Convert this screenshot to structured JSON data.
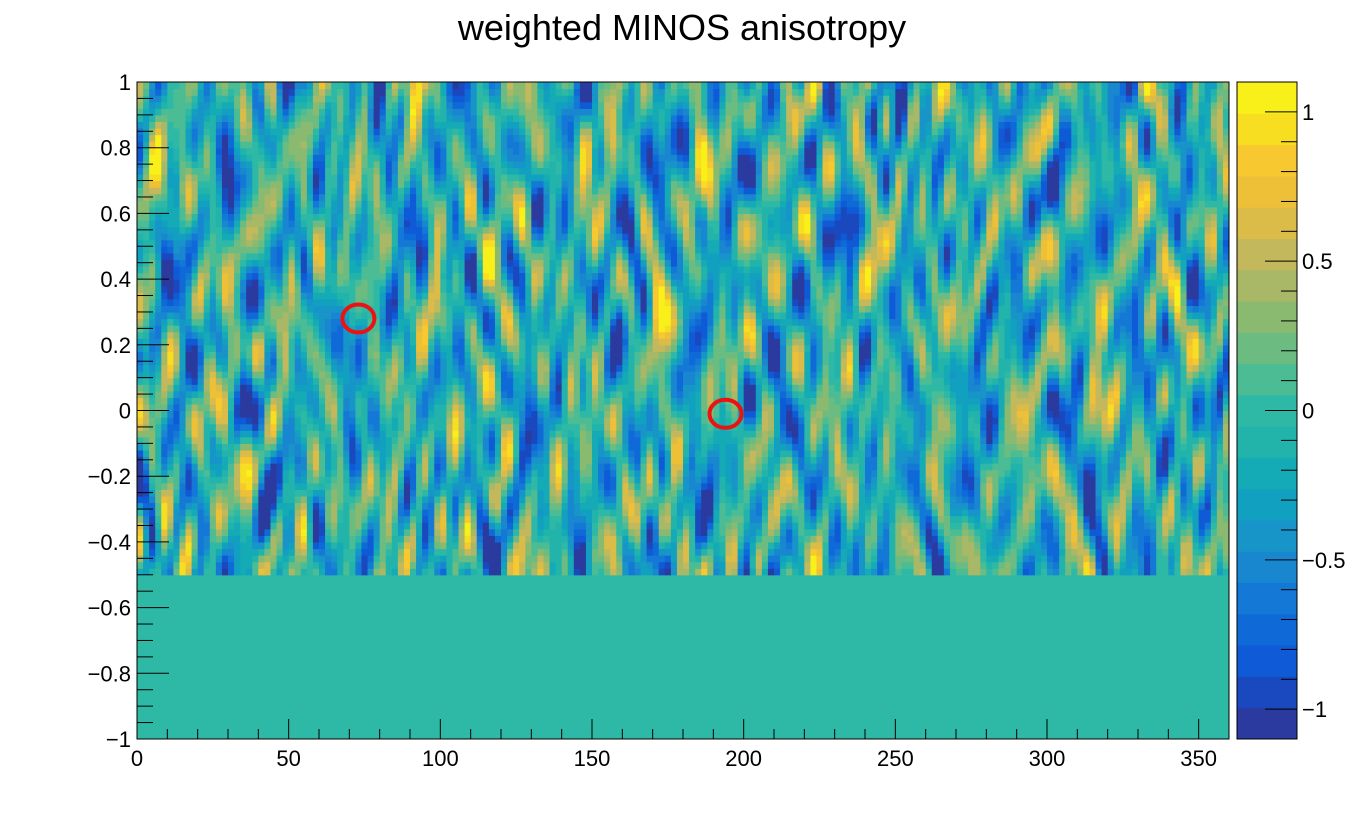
{
  "chart_data": {
    "type": "heatmap",
    "title": "weighted MINOS anisotropy",
    "xlabel": "",
    "ylabel": "",
    "xlim": [
      0,
      360
    ],
    "ylim": [
      -1,
      1
    ],
    "zlim": [
      -1.1,
      1.1
    ],
    "x_tick_labels": [
      "0",
      "50",
      "100",
      "150",
      "200",
      "250",
      "300",
      "350"
    ],
    "x_tick_values": [
      0,
      50,
      100,
      150,
      200,
      250,
      300,
      350
    ],
    "y_tick_labels": [
      "−1",
      "−0.8",
      "−0.6",
      "−0.4",
      "−0.2",
      "0",
      "0.2",
      "0.4",
      "0.6",
      "0.8",
      "1"
    ],
    "y_tick_values": [
      -1,
      -0.8,
      -0.6,
      -0.4,
      -0.2,
      0,
      0.2,
      0.4,
      0.6,
      0.8,
      1
    ],
    "colorbar_tick_labels": [
      "−1",
      "−0.5",
      "0",
      "0.5",
      "1"
    ],
    "colorbar_tick_values": [
      -1,
      -0.5,
      0,
      0.5,
      1
    ],
    "colorbar_levels": 20,
    "no_data_below_y": -0.5,
    "no_data_value": 0,
    "palette": [
      "#2a3a9e",
      "#1a48bf",
      "#0f5ad6",
      "#0f6ad8",
      "#1478d6",
      "#1986d0",
      "#1794c8",
      "#12a0c0",
      "#14aab6",
      "#22b4aa",
      "#2eb9a6",
      "#4cbc94",
      "#6cbc82",
      "#8aba70",
      "#a8b866",
      "#c4b85c",
      "#dcbc48",
      "#eec038",
      "#f8c830",
      "#f8de20",
      "#f8f018"
    ],
    "highlight_markers": [
      {
        "x": 73,
        "y": 0.28,
        "color": "#ee1111"
      },
      {
        "x": 194,
        "y": -0.01,
        "color": "#ee1111"
      }
    ],
    "grid": false,
    "legend": "none"
  }
}
